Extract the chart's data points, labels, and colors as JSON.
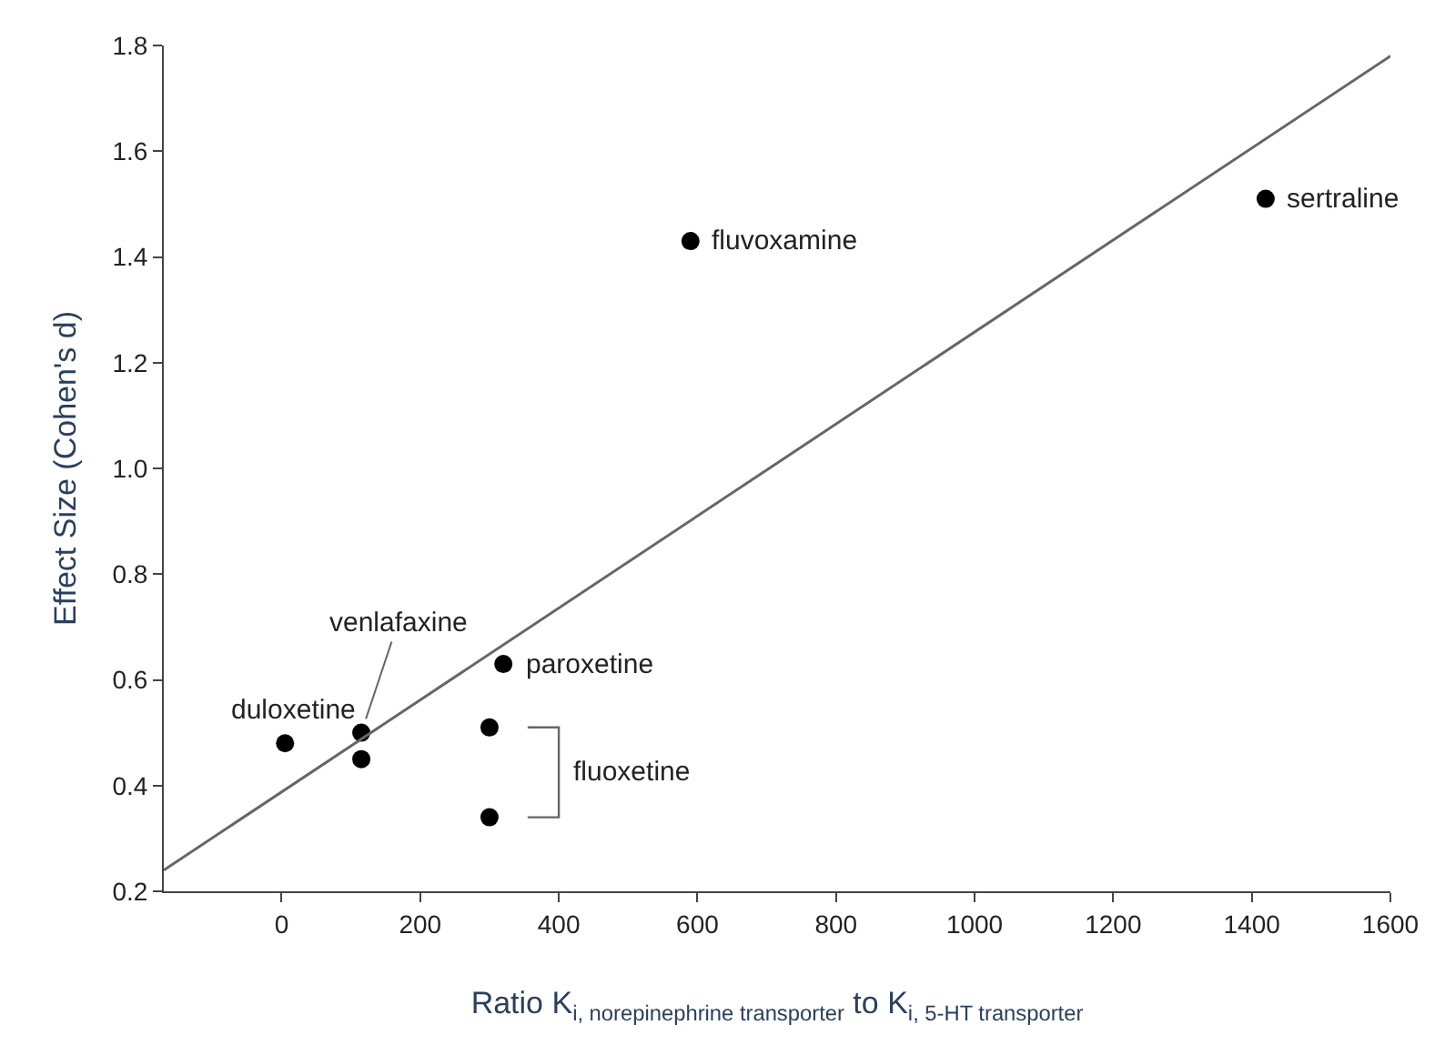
{
  "chart_data": {
    "type": "scatter",
    "xlabel": "Ratio K$_{i, norepinephrine transporter}$ to K$_{i, 5-HT transporter}$",
    "ylabel": "Effect Size (Cohen's d)",
    "series": [
      {
        "color": "#000000",
        "x": [
          5,
          115,
          115,
          320,
          300,
          300,
          590,
          1420
        ],
        "values": [
          0.48,
          0.5,
          0.45,
          0.63,
          0.51,
          0.34,
          1.43,
          1.51
        ]
      },
      {
        "type": "line",
        "marker": "none",
        "color": "#666666",
        "x": [
          -170,
          1600
        ],
        "values": [
          0.24,
          1.78
        ]
      }
    ],
    "annotations": [
      {
        "text": "duloxetine",
        "x": 5,
        "y": 0.48
      },
      {
        "text": "venlafaxine",
        "x": 115,
        "y": 0.5
      },
      {
        "text": "paroxetine",
        "x": 320,
        "y": 0.63
      },
      "fluoxetine",
      {
        "text": "fluvoxamine",
        "x": 590,
        "y": 1.43
      },
      {
        "text": "sertraline",
        "x": 1420,
        "y": 1.51
      }
    ],
    "xlim": [
      -170,
      1600
    ],
    "ylim": [
      0.2,
      1.8
    ],
    "xticks": [
      0,
      200,
      400,
      600,
      800,
      1000,
      1200,
      1400,
      1600
    ],
    "yticks": [
      0.2,
      0.4,
      0.6,
      0.8,
      {
        "value": 1,
        "label": "1.0"
      },
      1.2,
      1.4,
      1.6,
      1.8
    ],
    "marker": "circle",
    "line_style": "solid"
  }
}
